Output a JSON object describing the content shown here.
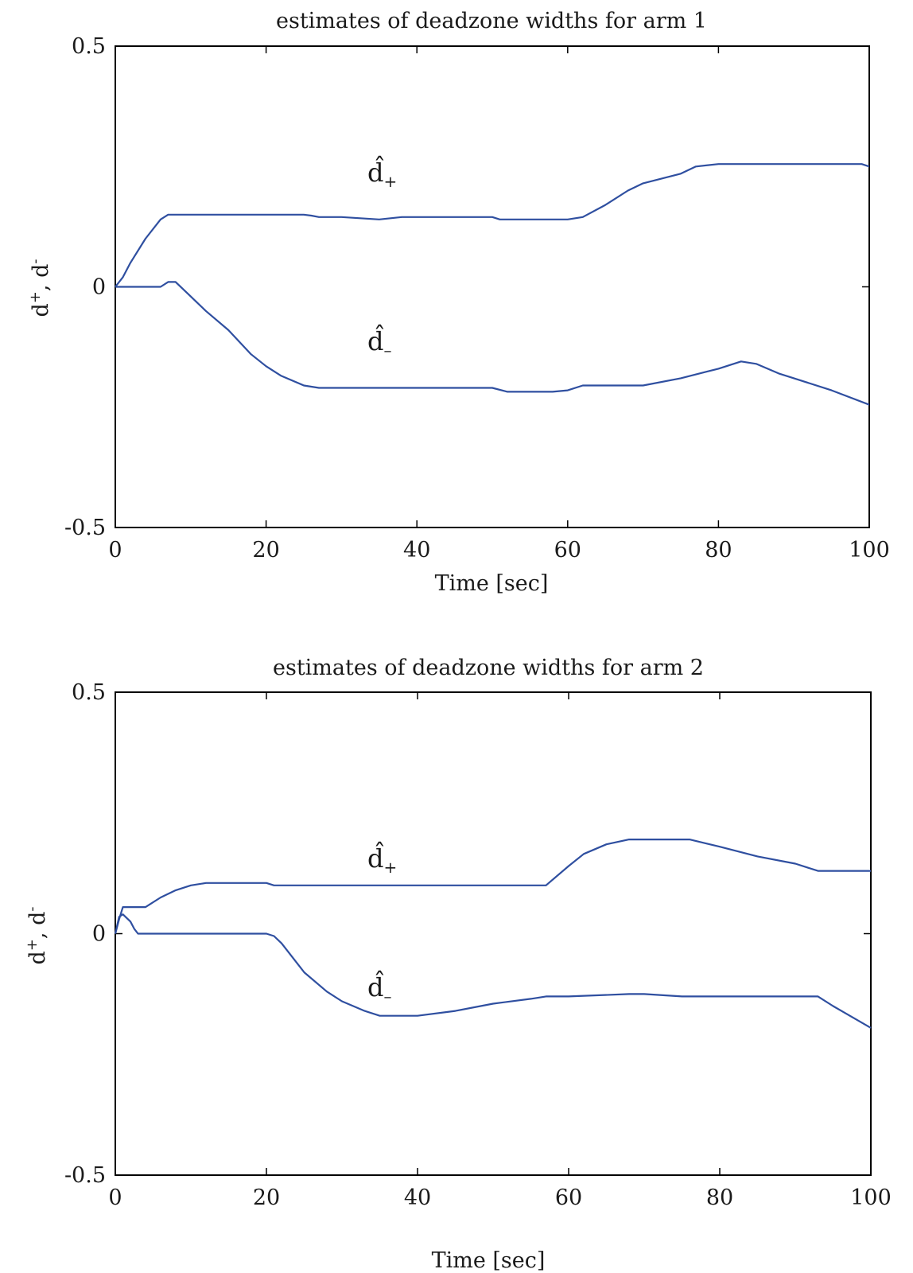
{
  "charts": {
    "chart_data": [
      {
        "type": "line",
        "title": "estimates of deadzone widths for arm 1",
        "xlabel": "Time [sec]",
        "ylabel": {
          "base": "d",
          "sup1": "+",
          "sep": ", d",
          "sup2": "-"
        },
        "xlim": [
          0,
          100
        ],
        "ylim": [
          -0.5,
          0.5
        ],
        "xticks": [
          "0",
          "20",
          "40",
          "60",
          "80",
          "100"
        ],
        "yticks": [
          "-0.5",
          "0",
          "0.5"
        ],
        "grid": false,
        "line_color": "#2f4fa0",
        "annotations": [
          {
            "base": "d̂",
            "sub": "+"
          },
          {
            "base": "d̂",
            "sub": "–"
          }
        ],
        "series": [
          {
            "x": [
              0,
              1,
              2,
              4,
              6,
              7,
              10,
              15,
              20,
              25,
              26,
              27,
              28,
              30,
              35,
              38,
              40,
              45,
              50,
              51,
              55,
              60,
              62,
              65,
              68,
              70,
              75,
              77,
              80,
              85,
              90,
              95,
              99,
              100
            ],
            "y": [
              0,
              0.02,
              0.05,
              0.1,
              0.14,
              0.15,
              0.15,
              0.15,
              0.15,
              0.15,
              0.148,
              0.145,
              0.145,
              0.145,
              0.14,
              0.145,
              0.145,
              0.145,
              0.145,
              0.14,
              0.14,
              0.14,
              0.145,
              0.17,
              0.2,
              0.215,
              0.235,
              0.25,
              0.255,
              0.255,
              0.255,
              0.255,
              0.255,
              0.25
            ]
          },
          {
            "x": [
              0,
              3,
              6,
              7,
              8,
              10,
              12,
              15,
              18,
              20,
              22,
              25,
              27,
              30,
              35,
              40,
              45,
              50,
              52,
              55,
              58,
              60,
              62,
              65,
              70,
              75,
              80,
              83,
              85,
              88,
              90,
              95,
              100
            ],
            "y": [
              0,
              0,
              0,
              0.01,
              0.01,
              -0.02,
              -0.05,
              -0.09,
              -0.14,
              -0.165,
              -0.185,
              -0.205,
              -0.21,
              -0.21,
              -0.21,
              -0.21,
              -0.21,
              -0.21,
              -0.218,
              -0.218,
              -0.218,
              -0.215,
              -0.205,
              -0.205,
              -0.205,
              -0.19,
              -0.17,
              -0.155,
              -0.16,
              -0.18,
              -0.19,
              -0.215,
              -0.245
            ]
          }
        ]
      },
      {
        "type": "line",
        "title": "estimates of deadzone widths for arm 2",
        "xlabel": "Time [sec]",
        "ylabel": {
          "base": "d",
          "sup1": "+",
          "sep": ", d",
          "sup2": "-"
        },
        "xlim": [
          0,
          100
        ],
        "ylim": [
          -0.5,
          0.5
        ],
        "xticks": [
          "0",
          "20",
          "40",
          "60",
          "80",
          "100"
        ],
        "yticks": [
          "-0.5",
          "0",
          "0.5"
        ],
        "grid": false,
        "line_color": "#2f4fa0",
        "annotations": [
          {
            "base": "d̂",
            "sub": "+"
          },
          {
            "base": "d̂",
            "sub": "–"
          }
        ],
        "series": [
          {
            "x": [
              0,
              0.5,
              1,
              3,
              4,
              6,
              8,
              10,
              12,
              15,
              20,
              21,
              30,
              40,
              50,
              57,
              60,
              62,
              65,
              68,
              70,
              73,
              76,
              80,
              85,
              90,
              93,
              96,
              100
            ],
            "y": [
              0,
              0.03,
              0.055,
              0.055,
              0.055,
              0.075,
              0.09,
              0.1,
              0.105,
              0.105,
              0.105,
              0.1,
              0.1,
              0.1,
              0.1,
              0.1,
              0.14,
              0.165,
              0.185,
              0.195,
              0.195,
              0.195,
              0.195,
              0.18,
              0.16,
              0.145,
              0.13,
              0.13,
              0.13
            ]
          },
          {
            "x": [
              0,
              0.5,
              1,
              2,
              2.5,
              3,
              5,
              10,
              15,
              20,
              21,
              22,
              25,
              28,
              30,
              33,
              35,
              37,
              40,
              45,
              50,
              55,
              57,
              60,
              68,
              70,
              75,
              80,
              90,
              93,
              95,
              100
            ],
            "y": [
              0,
              0.035,
              0.04,
              0.025,
              0.01,
              0,
              0,
              0,
              0,
              0,
              -0.005,
              -0.02,
              -0.08,
              -0.12,
              -0.14,
              -0.16,
              -0.17,
              -0.17,
              -0.17,
              -0.16,
              -0.145,
              -0.135,
              -0.13,
              -0.13,
              -0.125,
              -0.125,
              -0.13,
              -0.13,
              -0.13,
              -0.13,
              -0.15,
              -0.195
            ]
          }
        ]
      }
    ]
  }
}
